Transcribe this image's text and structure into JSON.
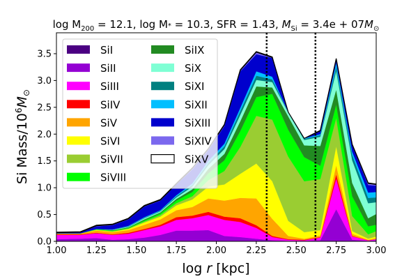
{
  "chart_data": {
    "type": "area",
    "stacked": true,
    "title": "log M200 = 12.1, log M* = 10.3, SFR = 1.43, M_Si = 3.4e+07 M_sun",
    "title_parts": {
      "log_m200_label": "log M",
      "log_m200_sub": "200",
      "log_m200_value": " = 12.1, log M",
      "log_mstar_sub": "*",
      "log_mstar_value": " = 10.3, SFR = 1.43, ",
      "msi_label": "M",
      "msi_sub": "Si",
      "msi_value": " = 3.4e + 07",
      "msi_unit": "M",
      "msi_unit_sub": "⊙"
    },
    "xlabel": "log r [kpc]",
    "xlabel_parts": {
      "prefix": "log ",
      "var": "r",
      "suffix": " [kpc]"
    },
    "ylabel": "Si Mass/10^6 M_sun",
    "ylabel_parts": {
      "prefix": "Si Mass/10",
      "sup": "6",
      "var": "M",
      "sub": "⊙"
    },
    "xlim": [
      1.0,
      3.0
    ],
    "ylim": [
      0.0,
      3.89
    ],
    "xticks": [
      "1.00",
      "1.25",
      "1.50",
      "1.75",
      "2.00",
      "2.25",
      "2.50",
      "2.75",
      "3.00"
    ],
    "xtick_values": [
      1.0,
      1.25,
      1.5,
      1.75,
      2.0,
      2.25,
      2.5,
      2.75,
      3.0
    ],
    "yticks": [
      "0.0",
      "0.5",
      "1.0",
      "1.5",
      "2.0",
      "2.5",
      "3.0",
      "3.5"
    ],
    "ytick_values": [
      0.0,
      0.5,
      1.0,
      1.5,
      2.0,
      2.5,
      3.0,
      3.5
    ],
    "grid": false,
    "legend_position": "top-left",
    "vlines": [
      {
        "x": 2.315,
        "style": "dotted",
        "color": "#000000"
      },
      {
        "x": 2.62,
        "style": "dotted",
        "color": "#000000"
      }
    ],
    "x": [
      1.0,
      1.15,
      1.25,
      1.35,
      1.45,
      1.55,
      1.65,
      1.75,
      1.85,
      1.95,
      2.05,
      2.15,
      2.25,
      2.35,
      2.45,
      2.55,
      2.65,
      2.75,
      2.85,
      2.95,
      3.0
    ],
    "series": [
      {
        "name": "SiI",
        "color": "#4b0082",
        "values": [
          0.0,
          0.0,
          0.0,
          0.0,
          0.0,
          0.0,
          0.0,
          0.0,
          0.0,
          0.0,
          0.0,
          0.0,
          0.0,
          0.0,
          0.0,
          0.0,
          0.0,
          0.0,
          0.0,
          0.0,
          0.0
        ]
      },
      {
        "name": "SiII",
        "color": "#9400d3",
        "values": [
          0.04,
          0.05,
          0.06,
          0.03,
          0.04,
          0.07,
          0.12,
          0.2,
          0.2,
          0.21,
          0.1,
          0.08,
          0.05,
          0.02,
          0.01,
          0.01,
          0.02,
          0.6,
          0.03,
          0.01,
          0.02
        ]
      },
      {
        "name": "SiIII",
        "color": "#ff00ff",
        "values": [
          0.08,
          0.07,
          0.09,
          0.09,
          0.1,
          0.14,
          0.16,
          0.2,
          0.23,
          0.28,
          0.3,
          0.28,
          0.2,
          0.06,
          0.02,
          0.01,
          0.05,
          0.57,
          0.06,
          0.01,
          0.02
        ]
      },
      {
        "name": "SiIV",
        "color": "#ff0000",
        "values": [
          0.01,
          0.01,
          0.01,
          0.01,
          0.02,
          0.02,
          0.03,
          0.05,
          0.05,
          0.06,
          0.06,
          0.07,
          0.05,
          0.02,
          0.01,
          0.01,
          0.01,
          0.08,
          0.01,
          0.0,
          0.0
        ]
      },
      {
        "name": "SiV",
        "color": "#ffa500",
        "values": [
          0.02,
          0.02,
          0.04,
          0.04,
          0.05,
          0.08,
          0.1,
          0.13,
          0.16,
          0.25,
          0.3,
          0.38,
          0.5,
          0.32,
          0.06,
          0.02,
          0.03,
          0.17,
          0.04,
          0.01,
          0.02
        ]
      },
      {
        "name": "SiVI",
        "color": "#ffff00",
        "values": [
          0.0,
          0.0,
          0.01,
          0.01,
          0.02,
          0.04,
          0.05,
          0.09,
          0.14,
          0.22,
          0.3,
          0.45,
          0.65,
          0.7,
          0.28,
          0.12,
          0.1,
          0.35,
          0.05,
          0.02,
          0.03
        ]
      },
      {
        "name": "SiVII",
        "color": "#9acd32",
        "values": [
          0.0,
          0.0,
          0.01,
          0.01,
          0.01,
          0.02,
          0.03,
          0.04,
          0.06,
          0.12,
          0.25,
          0.5,
          0.89,
          1.15,
          1.2,
          0.95,
          0.95,
          0.53,
          0.28,
          0.08,
          0.1
        ]
      },
      {
        "name": "SiVIII",
        "color": "#00ff00",
        "values": [
          0.0,
          0.0,
          0.01,
          0.01,
          0.01,
          0.02,
          0.03,
          0.05,
          0.08,
          0.13,
          0.2,
          0.3,
          0.35,
          0.48,
          0.5,
          0.45,
          0.25,
          0.25,
          0.37,
          0.15,
          0.12
        ]
      },
      {
        "name": "SiIX",
        "color": "#228b22",
        "values": [
          0.0,
          0.0,
          0.0,
          0.01,
          0.01,
          0.02,
          0.02,
          0.03,
          0.05,
          0.08,
          0.12,
          0.18,
          0.2,
          0.12,
          0.25,
          0.22,
          0.37,
          0.28,
          0.25,
          0.15,
          0.2
        ]
      },
      {
        "name": "SiX",
        "color": "#7fffd4",
        "values": [
          0.0,
          0.0,
          0.0,
          0.01,
          0.01,
          0.02,
          0.02,
          0.03,
          0.05,
          0.07,
          0.09,
          0.12,
          0.12,
          0.1,
          0.07,
          0.1,
          0.17,
          0.35,
          0.42,
          0.28,
          0.22
        ]
      },
      {
        "name": "SiXI",
        "color": "#008080",
        "values": [
          0.0,
          0.0,
          0.0,
          0.0,
          0.01,
          0.01,
          0.01,
          0.02,
          0.03,
          0.04,
          0.05,
          0.07,
          0.08,
          0.05,
          0.01,
          0.02,
          0.03,
          0.08,
          0.1,
          0.1,
          0.09
        ]
      },
      {
        "name": "SiXII",
        "color": "#00bfff",
        "values": [
          0.0,
          0.0,
          0.0,
          0.0,
          0.01,
          0.01,
          0.01,
          0.02,
          0.03,
          0.04,
          0.05,
          0.06,
          0.08,
          0.05,
          0.0,
          0.01,
          0.02,
          0.07,
          0.06,
          0.1,
          0.1
        ]
      },
      {
        "name": "SiXIII",
        "color": "#0000cd",
        "values": [
          0.01,
          0.02,
          0.05,
          0.08,
          0.12,
          0.2,
          0.18,
          0.2,
          0.26,
          0.2,
          0.33,
          0.68,
          0.32,
          0.35,
          0.0,
          0.0,
          0.05,
          0.06,
          0.12,
          0.14,
          0.12
        ]
      },
      {
        "name": "SiXIV",
        "color": "#7b68ee",
        "values": [
          0.0,
          0.0,
          0.01,
          0.01,
          0.01,
          0.01,
          0.01,
          0.01,
          0.02,
          0.02,
          0.02,
          0.02,
          0.04,
          0.01,
          0.0,
          0.0,
          0.01,
          0.01,
          0.01,
          0.03,
          0.02
        ]
      },
      {
        "name": "SiXV",
        "color": "#ffffff",
        "edge": "#000000",
        "values": [
          0.01,
          0.01,
          0.01,
          0.01,
          0.01,
          0.01,
          0.01,
          0.01,
          0.01,
          0.01,
          0.01,
          0.01,
          0.01,
          0.01,
          0.0,
          0.0,
          0.01,
          0.01,
          0.01,
          0.01,
          0.01
        ]
      }
    ]
  }
}
